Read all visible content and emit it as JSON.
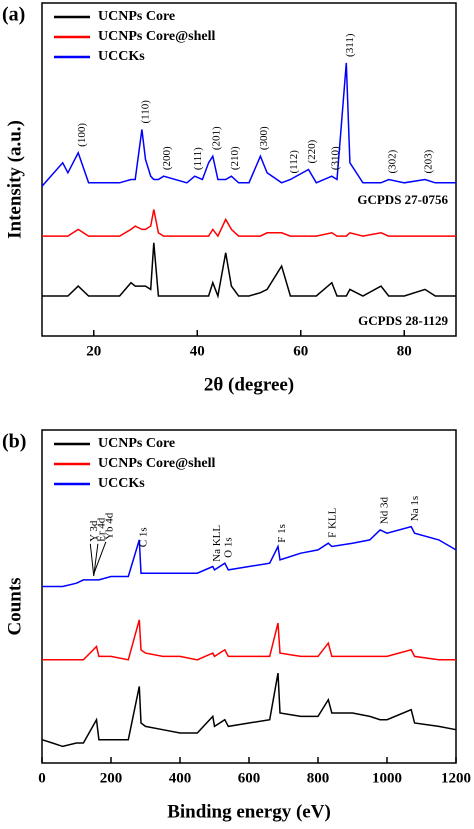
{
  "chart_data": [
    {
      "type": "line",
      "panel_label": "(a)",
      "xlabel": "2θ (degree)",
      "ylabel": "Intensity (a.u.)",
      "xlim": [
        10,
        90
      ],
      "xticks": [
        20,
        40,
        60,
        80
      ],
      "ylim": [
        0,
        100
      ],
      "legend": "upper left",
      "x": [
        10,
        14,
        15,
        17,
        19,
        25,
        27.2,
        28,
        29.3,
        30,
        31,
        31.6,
        32.5,
        33.5,
        38,
        39.5,
        41,
        42.2,
        43,
        44,
        45.5,
        46.6,
        48,
        50,
        52.2,
        53.5,
        56.3,
        58,
        61.5,
        63,
        66,
        67,
        68.8,
        69.5,
        72,
        75.5,
        77,
        80,
        84,
        86,
        90
      ],
      "series": [
        {
          "name": "UCNPs Core",
          "color": "#000000",
          "values": [
            12,
            12,
            12,
            15,
            12,
            12,
            16,
            15,
            15,
            15,
            14,
            28,
            12,
            12,
            12,
            12,
            12,
            12,
            16,
            12,
            25,
            15,
            12,
            12,
            13,
            14,
            21,
            12,
            12,
            12,
            16,
            12,
            12,
            14,
            12,
            15,
            12,
            12,
            14,
            12,
            12
          ]
        },
        {
          "name": "UCNPs Core@shell",
          "color": "#ff0000",
          "values": [
            30,
            30,
            30,
            32,
            30,
            30,
            32,
            33,
            32,
            32,
            33,
            38,
            31,
            30,
            30,
            30,
            30,
            30,
            32,
            30,
            35,
            32,
            30,
            30,
            30,
            31,
            31,
            30,
            30,
            30,
            31,
            30,
            30,
            31,
            30,
            31,
            30,
            30,
            30,
            30,
            30
          ]
        },
        {
          "name": "UCCKs",
          "color": "#0000ff",
          "values": [
            45,
            52,
            49,
            55,
            46,
            46,
            47,
            47,
            62,
            53,
            48,
            47,
            47,
            48,
            46,
            48,
            47,
            52,
            54,
            47,
            47,
            48,
            46,
            46,
            54,
            49,
            46,
            47,
            50,
            46,
            48,
            47,
            82,
            52,
            46,
            46,
            47,
            46,
            47,
            46,
            46
          ]
        }
      ],
      "annotations": [
        {
          "text": "(100)",
          "x": 17
        },
        {
          "text": "(110)",
          "x": 29.3
        },
        {
          "text": "(200)",
          "x": 33.5
        },
        {
          "text": "(111)",
          "x": 39.5
        },
        {
          "text": "(201)",
          "x": 43
        },
        {
          "text": "(210)",
          "x": 46.6
        },
        {
          "text": "(300)",
          "x": 52.2
        },
        {
          "text": "(112)",
          "x": 58
        },
        {
          "text": "(220)",
          "x": 61.5
        },
        {
          "text": "(310)",
          "x": 66
        },
        {
          "text": "(311)",
          "x": 68.8
        },
        {
          "text": "(302)",
          "x": 77
        },
        {
          "text": "(203)",
          "x": 84
        }
      ],
      "reference_cards": [
        "GCPDS 27-0756",
        "GCPDS 28-1129"
      ]
    },
    {
      "type": "line",
      "panel_label": "(b)",
      "xlabel": "Binding energy (eV)",
      "ylabel": "Counts",
      "xlim": [
        0,
        1200
      ],
      "xticks": [
        0,
        200,
        400,
        600,
        800,
        1000,
        1200
      ],
      "ylim": [
        0,
        100
      ],
      "legend": "upper left",
      "x": [
        0,
        30,
        60,
        100,
        120,
        158,
        165,
        200,
        250,
        282,
        287,
        300,
        350,
        400,
        450,
        495,
        500,
        530,
        540,
        600,
        660,
        684,
        690,
        750,
        800,
        830,
        840,
        900,
        950,
        980,
        1000,
        1070,
        1080,
        1150,
        1200
      ],
      "series": [
        {
          "name": "UCNPs Core",
          "color": "#000000",
          "values": [
            7,
            6,
            5,
            6,
            6,
            13,
            7,
            7,
            7,
            23,
            12,
            11,
            10,
            9,
            9,
            14,
            11,
            13,
            11,
            12,
            13,
            27,
            15,
            14,
            14,
            19,
            15,
            15,
            14,
            13,
            13,
            16,
            12,
            11,
            10
          ]
        },
        {
          "name": "UCNPs Core@shell",
          "color": "#ff0000",
          "values": [
            31,
            31,
            31,
            31,
            31,
            35,
            32,
            32,
            31,
            43,
            34,
            33,
            32,
            32,
            31,
            33,
            32,
            34,
            32,
            32,
            32,
            42,
            33,
            32,
            32,
            36,
            32,
            32,
            32,
            32,
            32,
            34,
            32,
            31,
            31
          ]
        },
        {
          "name": "UCCKs",
          "color": "#0000ff",
          "values": [
            53,
            53,
            53,
            54,
            55,
            55,
            55,
            56,
            56,
            67,
            57,
            57,
            57,
            57,
            57,
            59,
            58,
            60,
            58,
            59,
            60,
            65,
            61,
            63,
            64,
            66,
            65,
            66,
            67,
            70,
            69,
            71,
            69,
            67,
            64
          ]
        }
      ],
      "annotations": [
        {
          "text": "Y 3d",
          "x": 140
        },
        {
          "text": "Er 4d",
          "x": 162
        },
        {
          "text": "Yb 4d",
          "x": 185
        },
        {
          "text": "C 1s",
          "x": 284
        },
        {
          "text": "Na KLL",
          "x": 497
        },
        {
          "text": "O 1s",
          "x": 531
        },
        {
          "text": "F 1s",
          "x": 685
        },
        {
          "text": "F KLL",
          "x": 832
        },
        {
          "text": "Nd 3d",
          "x": 982
        },
        {
          "text": "Na 1s",
          "x": 1071
        }
      ]
    }
  ]
}
